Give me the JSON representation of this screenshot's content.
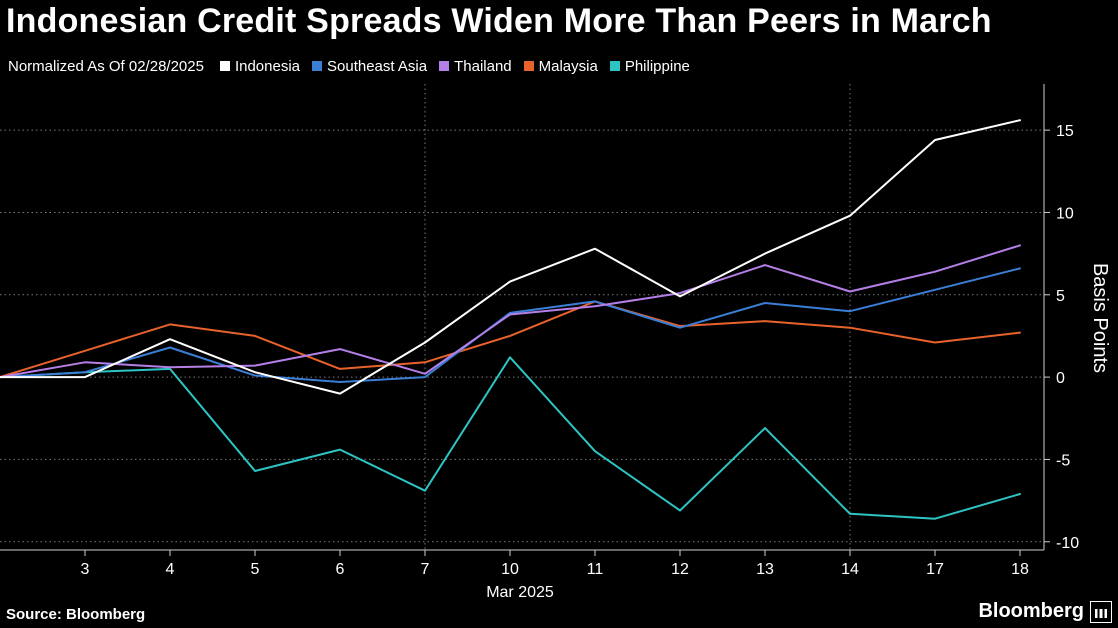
{
  "title": "Indonesian Credit Spreads Widen More Than Peers in March",
  "legend_note": "Normalized As Of 02/28/2025",
  "source": "Source: Bloomberg",
  "brand": "Bloomberg",
  "chart_data": {
    "type": "line",
    "x": [
      "2",
      "3",
      "4",
      "5",
      "6",
      "7",
      "10",
      "11",
      "12",
      "13",
      "14",
      "17",
      "18"
    ],
    "x_tick_labels": [
      "3",
      "4",
      "5",
      "6",
      "7",
      "10",
      "11",
      "12",
      "13",
      "14",
      "17",
      "18"
    ],
    "xlabel": "Mar 2025",
    "ylabel": "Basis Points",
    "ylim": [
      -10.5,
      17.8
    ],
    "yticks": [
      15,
      10,
      5,
      0,
      -5,
      -10
    ],
    "grid": true,
    "vertical_gridlines_at": [
      "7",
      "14"
    ],
    "y_axis_position": "right",
    "legend_position": "top-left",
    "series": [
      {
        "name": "Indonesia",
        "color": "#ffffff",
        "values": [
          0,
          0,
          2.3,
          0.3,
          -1.0,
          2.1,
          5.8,
          7.8,
          4.9,
          7.5,
          9.8,
          14.4,
          15.6
        ]
      },
      {
        "name": "Southeast Asia",
        "color": "#3a7fd5",
        "values": [
          0,
          0.3,
          1.8,
          0.1,
          -0.3,
          0.0,
          3.9,
          4.6,
          3.0,
          4.5,
          4.0,
          5.3,
          6.6
        ]
      },
      {
        "name": "Thailand",
        "color": "#b57fe8",
        "values": [
          0,
          0.9,
          0.6,
          0.7,
          1.7,
          0.2,
          3.8,
          4.3,
          5.1,
          6.8,
          5.2,
          6.4,
          8.0
        ]
      },
      {
        "name": "Malaysia",
        "color": "#e8622c",
        "values": [
          0,
          1.6,
          3.2,
          2.5,
          0.5,
          0.9,
          2.5,
          4.6,
          3.1,
          3.4,
          3.0,
          2.1,
          2.7
        ]
      },
      {
        "name": "Philippine",
        "color": "#2ec4c4",
        "values": [
          0,
          0.3,
          0.5,
          -5.7,
          -4.4,
          -6.9,
          1.2,
          -4.5,
          -8.1,
          -3.1,
          -8.3,
          -8.6,
          -7.1
        ]
      }
    ]
  }
}
